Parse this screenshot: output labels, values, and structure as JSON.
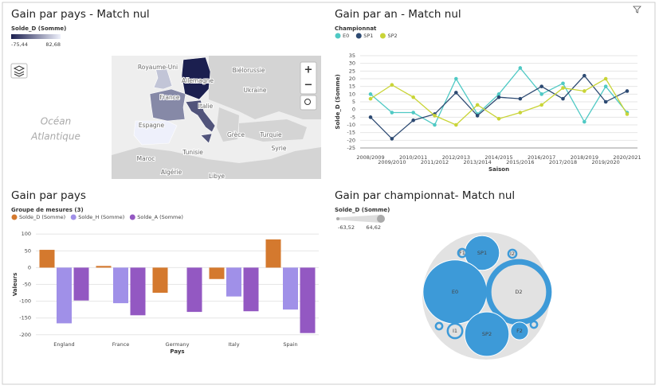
{
  "chart_data": [
    {
      "type": "choropleth",
      "title": "Gain par pays - Match nul",
      "legend_title": "Solde_D (Somme)",
      "colorlim": [
        -75.44,
        82.68
      ],
      "colors": [
        "#1b1f4f",
        "#eef0fb"
      ],
      "colorticks": [
        {
          "value": -75.44,
          "label": "-75,44"
        },
        {
          "value": 82.68,
          "label": "82,68"
        }
      ],
      "regions": [
        {
          "name": "Royaume-Uni",
          "value": 50
        },
        {
          "name": "France",
          "value": 5
        },
        {
          "name": "Espagne",
          "value": 82.68
        },
        {
          "name": "Allemagne",
          "value": -75.44
        },
        {
          "name": "Italie",
          "value": -35
        }
      ],
      "places": [
        "Océan",
        "Atlantique",
        "Biélorussie",
        "Ukraine",
        "Grèce",
        "Turquie",
        "Syrie",
        "Tunisie",
        "Maroc",
        "Algérie",
        "Libye"
      ]
    },
    {
      "type": "line",
      "title": "Gain par an - Match nul",
      "legend_title": "Championnat",
      "x_label": "Saison",
      "y_label": "Solde_D (Somme)",
      "categories": [
        "2008/2009",
        "2009/2010",
        "2010/2011",
        "2011/2012",
        "2012/2013",
        "2013/2014",
        "2014/2015",
        "2015/2016",
        "2016/2017",
        "2017/2018",
        "2018/2019",
        "2019/2020",
        "2020/2021"
      ],
      "ylim": [
        -25,
        35
      ],
      "yticks": [
        -25,
        -20,
        -15,
        -10,
        -5,
        0,
        5,
        10,
        15,
        20,
        25,
        30,
        35
      ],
      "grid": true,
      "series": [
        {
          "name": "E0",
          "color": "#4fc9c4",
          "values": [
            10,
            -2,
            -2,
            -10,
            20,
            -3,
            10,
            27,
            10,
            17,
            -8,
            15,
            -2
          ]
        },
        {
          "name": "SP1",
          "color": "#2d4a72",
          "values": [
            -5,
            -19,
            -7,
            -3,
            11,
            -4,
            8,
            7,
            15,
            7,
            22,
            5,
            12
          ]
        },
        {
          "name": "SP2",
          "color": "#c9d437",
          "values": [
            7,
            16,
            8,
            -4,
            -10,
            3,
            -6,
            -2,
            3,
            14,
            12,
            20,
            -3
          ]
        }
      ]
    },
    {
      "type": "bar",
      "title": "Gain par pays",
      "legend_title": "Groupe de mesures (3)",
      "x_label": "Pays",
      "y_label": "Valeurs",
      "categories": [
        "England",
        "France",
        "Germany",
        "Italy",
        "Spain"
      ],
      "ylim": [
        -210,
        110
      ],
      "yticks": [
        100,
        50,
        0,
        -50,
        -100,
        -150,
        -200
      ],
      "grid": true,
      "series": [
        {
          "name": "Solde_D (Somme)",
          "color": "#d4792e",
          "values": [
            53,
            5,
            -75,
            -34,
            84
          ]
        },
        {
          "name": "Solde_H (Somme)",
          "color": "#a090e8",
          "values": [
            -166,
            -106,
            null,
            -86,
            -125
          ]
        },
        {
          "name": "Solde_A (Somme)",
          "color": "#9358c2",
          "values": [
            -98,
            -142,
            -132,
            -130,
            -195
          ]
        }
      ]
    },
    {
      "type": "packed-bubble",
      "title": "Gain par championnat- Match nul",
      "legend_title": "Solde_D (Somme)",
      "colorticks": [
        {
          "value": -63.52,
          "label": "-63,52"
        },
        {
          "value": 64.62,
          "label": "64,62"
        }
      ],
      "color": "#3d9ad8",
      "bubbles": [
        {
          "name": "SP1",
          "value": 19
        },
        {
          "name": "I2",
          "value": -2
        },
        {
          "name": "F1",
          "value": -2
        },
        {
          "name": "E0",
          "value": 64.62
        },
        {
          "name": "D2",
          "value": -63.52
        },
        {
          "name": null,
          "value": -1.5
        },
        {
          "name": "I1",
          "value": -5
        },
        {
          "name": "SP2",
          "value": 31
        },
        {
          "name": "F2",
          "value": 5
        },
        {
          "name": null,
          "value": -1.5
        }
      ]
    }
  ]
}
